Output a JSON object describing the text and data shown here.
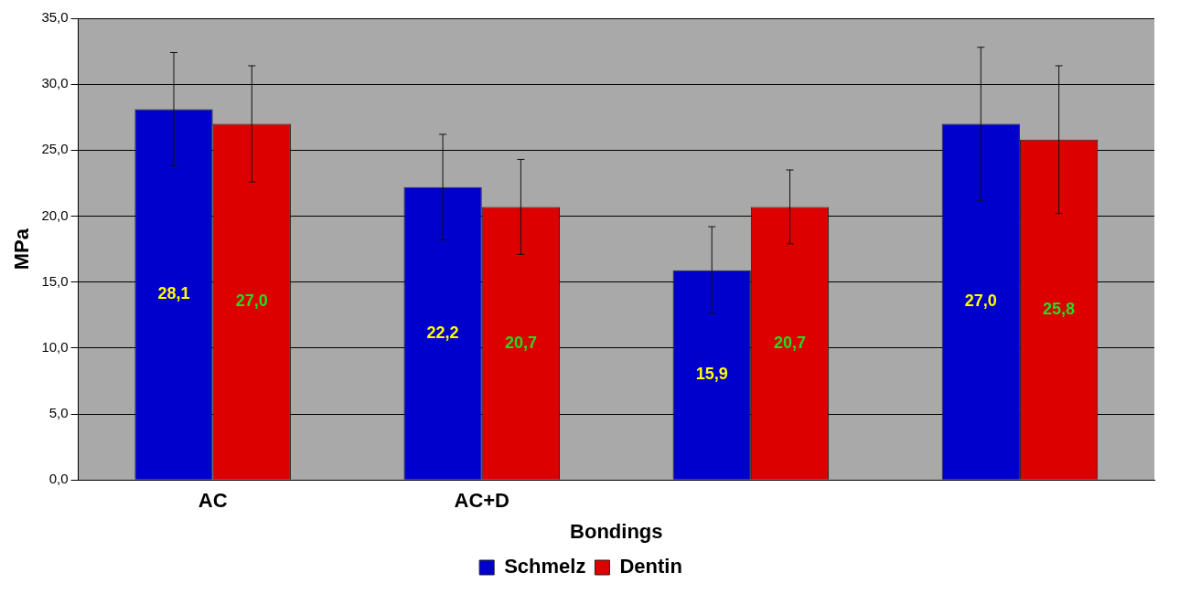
{
  "chart_data": {
    "type": "bar",
    "xlabel": "Bondings",
    "ylabel": "MPa",
    "categories": [
      "AC",
      "AC+D",
      null,
      null
    ],
    "series": [
      {
        "name": "Schmelz",
        "color": "#0000cc",
        "values": [
          28.1,
          22.2,
          15.9,
          27.0
        ],
        "errors": [
          4.3,
          4.0,
          3.3,
          5.8
        ],
        "value_labels": [
          "28,1",
          "22,2",
          "15,9",
          "27,0"
        ]
      },
      {
        "name": "Dentin",
        "color": "#dd0000",
        "values": [
          27.0,
          20.7,
          20.7,
          25.8
        ],
        "errors": [
          4.4,
          3.6,
          2.8,
          5.6
        ],
        "value_labels": [
          "27,0",
          "20,7",
          "20,7",
          "25,8"
        ]
      }
    ],
    "ylim": [
      0,
      35
    ],
    "yticks": [
      {
        "value": 0,
        "label": "0,0"
      },
      {
        "value": 5,
        "label": "5,0"
      },
      {
        "value": 10,
        "label": "10,0"
      },
      {
        "value": 15,
        "label": "15,0"
      },
      {
        "value": 20,
        "label": "20,0"
      },
      {
        "value": 25,
        "label": "25,0"
      },
      {
        "value": 30,
        "label": "30,0"
      },
      {
        "value": 35,
        "label": "35,0"
      }
    ],
    "grid": "y",
    "legend": "bottom"
  }
}
